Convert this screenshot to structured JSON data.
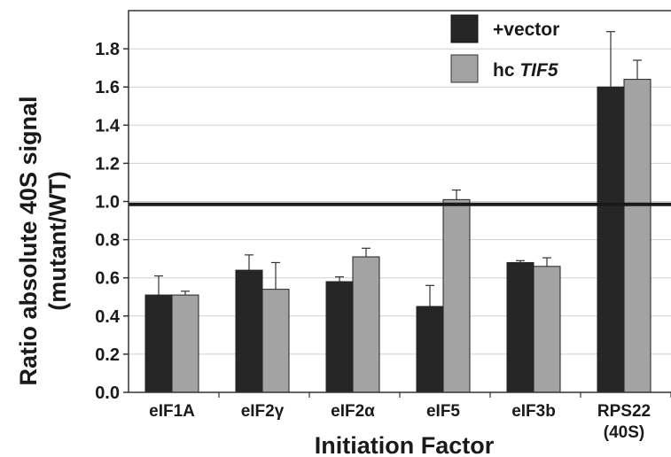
{
  "chart_data": {
    "type": "bar",
    "title": "",
    "xlabel": "Initiation Factor",
    "ylabel_lines": [
      "Ratio absolute 40S signal",
      "(mutant/WT)"
    ],
    "ylim": [
      0,
      2.0
    ],
    "yticks": [
      "0.0",
      "0.2",
      "0.4",
      "0.6",
      "0.8",
      "1.0",
      "1.2",
      "1.4",
      "1.6",
      "1.8"
    ],
    "categories": [
      {
        "lines": [
          "eIF1A"
        ]
      },
      {
        "lines": [
          "eIF2γ"
        ]
      },
      {
        "lines": [
          "eIF2α"
        ]
      },
      {
        "lines": [
          "eIF5"
        ]
      },
      {
        "lines": [
          "eIF3b"
        ]
      },
      {
        "lines": [
          "RPS22",
          "(40S)"
        ]
      }
    ],
    "series": [
      {
        "name": "+vector",
        "color": "#262626",
        "values": [
          0.51,
          0.64,
          0.58,
          0.45,
          0.68,
          1.6
        ],
        "errors": [
          0.1,
          0.08,
          0.025,
          0.11,
          0.01,
          0.29
        ]
      },
      {
        "name": "hc TIF5",
        "name_parts": [
          "hc ",
          "TIF5"
        ],
        "color": "#a3a3a3",
        "values": [
          0.51,
          0.54,
          0.71,
          1.01,
          0.66,
          1.64
        ],
        "errors": [
          0.02,
          0.14,
          0.045,
          0.05,
          0.045,
          0.1
        ]
      }
    ],
    "reference_line": 0.985,
    "grid": true,
    "legend": "top-right"
  }
}
